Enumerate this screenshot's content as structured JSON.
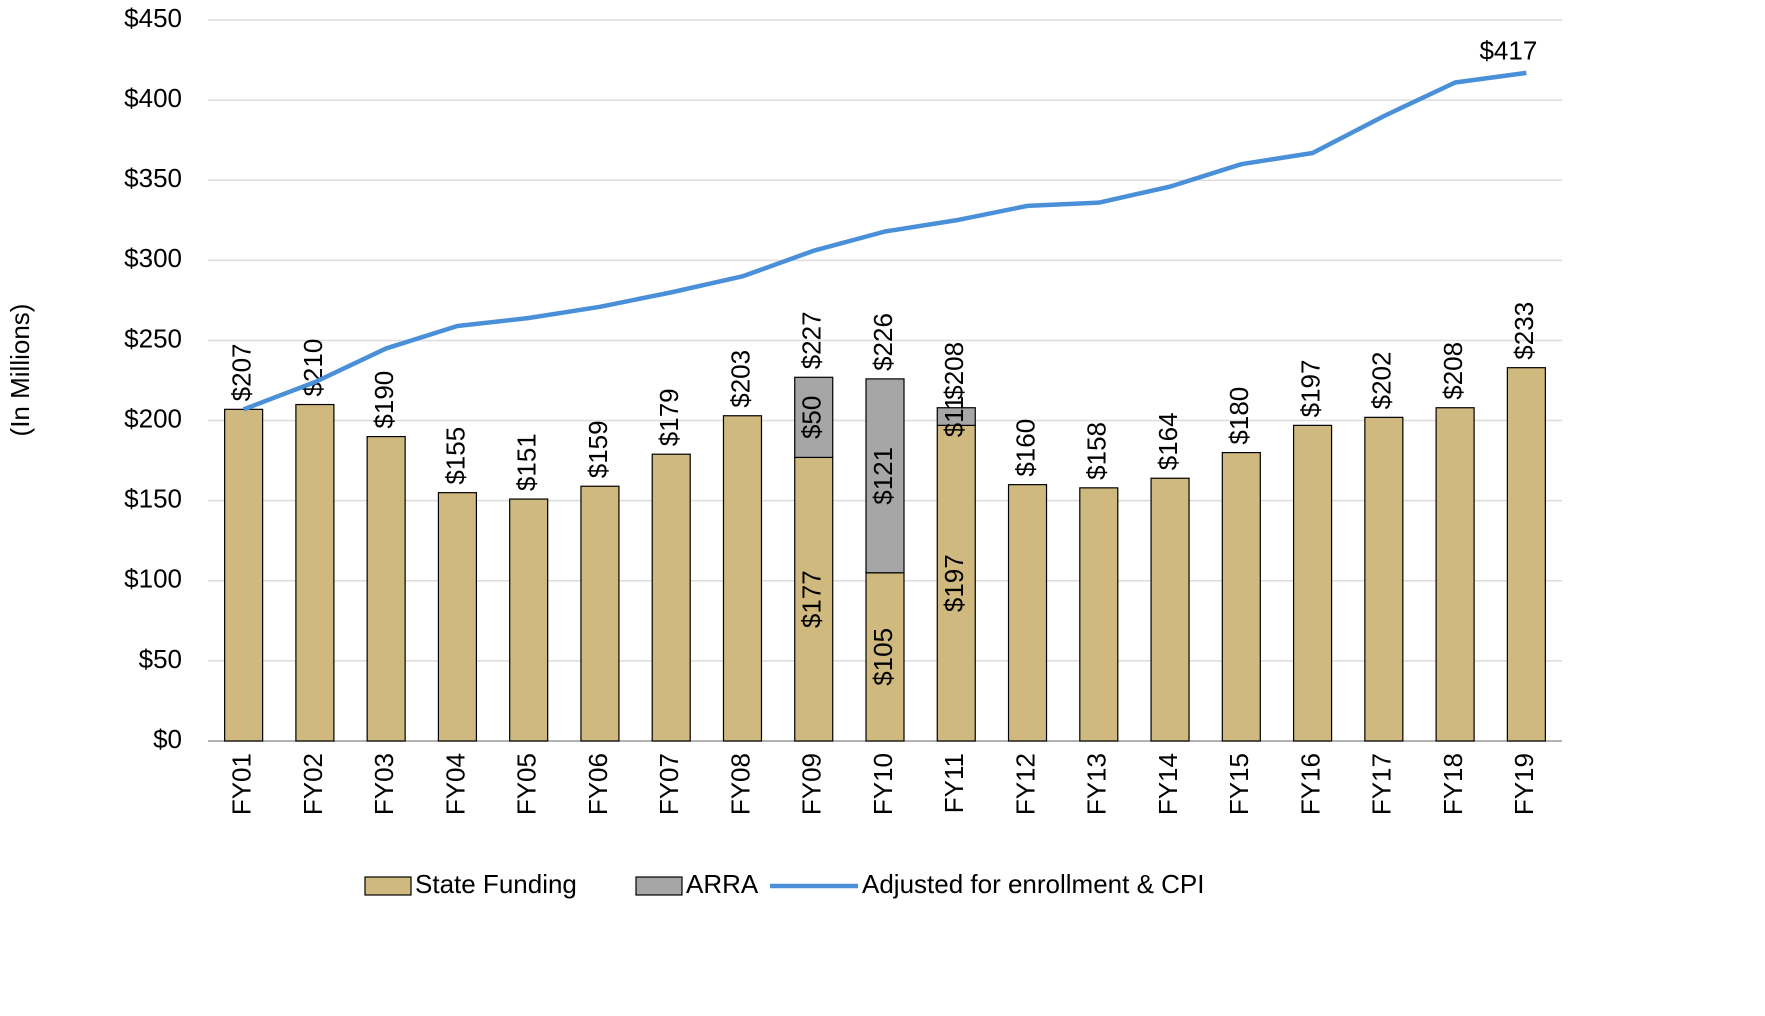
{
  "chart_data": {
    "type": "bar",
    "stacked": true,
    "y_axis_label": "(In Millions)",
    "categories": [
      "FY01",
      "FY02",
      "FY03",
      "FY04",
      "FY05",
      "FY06",
      "FY07",
      "FY08",
      "FY09",
      "FY10",
      "FY11",
      "FY12",
      "FY13",
      "FY14",
      "FY15",
      "FY16",
      "FY17",
      "FY18",
      "FY19"
    ],
    "series": [
      {
        "name": "State Funding",
        "type": "bar",
        "color": "#cfb97e",
        "values": [
          207,
          210,
          190,
          155,
          151,
          159,
          179,
          203,
          177,
          105,
          197,
          160,
          158,
          164,
          180,
          197,
          202,
          208,
          233
        ],
        "value_labels": [
          "$207",
          "$210",
          "$190",
          "$155",
          "$151",
          "$159",
          "$179",
          "$203",
          "$177",
          "$105",
          "$197",
          "$160",
          "$158",
          "$164",
          "$180",
          "$197",
          "$202",
          "$208",
          "$233"
        ]
      },
      {
        "name": "ARRA",
        "type": "bar",
        "color": "#a6a6a6",
        "values": [
          null,
          null,
          null,
          null,
          null,
          null,
          null,
          null,
          50,
          121,
          11,
          null,
          null,
          null,
          null,
          null,
          null,
          null,
          null
        ],
        "value_labels": [
          null,
          null,
          null,
          null,
          null,
          null,
          null,
          null,
          "$50",
          "$121",
          "$11",
          null,
          null,
          null,
          null,
          null,
          null,
          null,
          null
        ]
      },
      {
        "name": "Adjusted for enrollment & CPI",
        "type": "line",
        "color": "#4a90d9",
        "values": [
          207,
          224,
          245,
          259,
          264,
          271,
          280,
          290,
          306,
          318,
          325,
          334,
          336,
          346,
          360,
          367,
          390,
          411,
          417
        ],
        "value_labels": [
          null,
          null,
          null,
          null,
          null,
          null,
          null,
          null,
          null,
          null,
          null,
          null,
          null,
          null,
          null,
          null,
          null,
          null,
          "$417"
        ]
      }
    ],
    "totals": {
      "values": [
        null,
        null,
        null,
        null,
        null,
        null,
        null,
        null,
        227,
        226,
        208,
        null,
        null,
        null,
        null,
        null,
        null,
        null,
        null
      ],
      "labels": [
        null,
        null,
        null,
        null,
        null,
        null,
        null,
        null,
        "$227",
        "$226",
        "$208",
        null,
        null,
        null,
        null,
        null,
        null,
        null,
        null
      ]
    },
    "ylim": [
      0,
      450
    ],
    "yticks": [
      {
        "value": 0,
        "label": "$0"
      },
      {
        "value": 50,
        "label": "$50"
      },
      {
        "value": 100,
        "label": "$100"
      },
      {
        "value": 150,
        "label": "$150"
      },
      {
        "value": 200,
        "label": "$200"
      },
      {
        "value": 250,
        "label": "$250"
      },
      {
        "value": 300,
        "label": "$300"
      },
      {
        "value": 350,
        "label": "$350"
      },
      {
        "value": 400,
        "label": "$400"
      },
      {
        "value": 450,
        "label": "$450"
      }
    ],
    "grid": true,
    "legend": "bottom"
  }
}
